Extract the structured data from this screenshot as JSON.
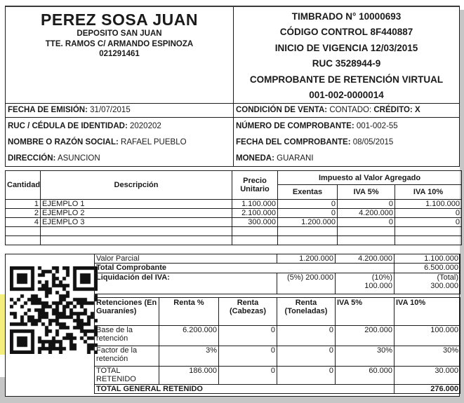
{
  "issuer": {
    "name": "PEREZ SOSA JUAN",
    "line2": "DEPOSITO SAN JUAN",
    "line3": "TTE. RAMOS C/ ARMANDO ESPINOZA",
    "line4": "021291461"
  },
  "stamp": {
    "timbrado": "TIMBRADO N° 10000693",
    "codigo_control": "CÓDIGO CONTROL 8F440887",
    "vigencia": "INICIO DE VIGENCIA 12/03/2015",
    "ruc": "RUC 3528944-9",
    "tipo_documento": "COMPROBANTE DE RETENCIÓN VIRTUAL",
    "numero_documento": "001-002-0000014"
  },
  "info": {
    "fecha_emision_label": "FECHA DE EMISIÓN:",
    "fecha_emision": "31/07/2015",
    "condicion_label": "CONDICIÓN DE VENTA:",
    "condicion_value": "CONTADO:",
    "credito": "CRÉDITO: X",
    "ruc_label": "RUC / CÉDULA DE IDENTIDAD:",
    "ruc": "2020202",
    "nombre_label": "NOMBRE O RAZÓN SOCIAL:",
    "nombre": "RAFAEL PUEBLO",
    "direccion_label": "DIRECCIÓN:",
    "direccion": "ASUNCION",
    "numero_label": "NÚMERO DE COMPROBANTE:",
    "numero": "001-002-55",
    "fecha_comprobante_label": "FECHA DEL COMPROBANTE:",
    "fecha_comprobante": "08/05/2015",
    "moneda_label": "MONEDA:",
    "moneda": "GUARANI"
  },
  "items_table": {
    "headers": {
      "cantidad": "Cantidad",
      "descripcion": "Descripción",
      "precio": "Precio Unitario",
      "iva_group": "Impuesto al Valor Agregado",
      "exentas": "Exentas",
      "iva5": "IVA 5%",
      "iva10": "IVA 10%"
    },
    "rows": [
      {
        "cantidad": "1",
        "descripcion": "EJEMPLO 1",
        "precio": "1.100.000",
        "exentas": "0",
        "iva5": "0",
        "iva10": "1.100.000"
      },
      {
        "cantidad": "2",
        "descripcion": "EJEMPLO 2",
        "precio": "2.100.000",
        "exentas": "0",
        "iva5": "4.200.000",
        "iva10": "0"
      },
      {
        "cantidad": "4",
        "descripcion": "EJEMPLO 3",
        "precio": "300.000",
        "exentas": "1.200.000",
        "iva5": "0",
        "iva10": "0"
      },
      {
        "cantidad": "",
        "descripcion": "",
        "precio": "",
        "exentas": "",
        "iva5": "",
        "iva10": ""
      },
      {
        "cantidad": "",
        "descripcion": "",
        "precio": "",
        "exentas": "",
        "iva5": "",
        "iva10": ""
      }
    ]
  },
  "totals": {
    "valor_parcial_label": "Valor Parcial",
    "valor_parcial_values": [
      "1.200.000",
      "4.200.000",
      "1.100.000"
    ],
    "total_comprobante_label": "Total Comprobante",
    "total_comprobante": "6.500.000",
    "liquidacion_label": "Liquidación del IVA:",
    "liq_5": "(5%) 200.000",
    "liq_10_l1": "(10%)",
    "liq_10_l2": "100.000",
    "liq_total_l1": "(Total)",
    "liq_total_l2": "300.000"
  },
  "retenciones": {
    "headers": [
      "Retenciones (En Guaraníes)",
      "Renta %",
      "Renta (Cabezas)",
      "Renta (Toneladas)",
      "IVA 5%",
      "IVA 10%"
    ],
    "rows": [
      {
        "label": "Base de la retención",
        "values": [
          "6.200.000",
          "0",
          "0",
          "200.000",
          "100.000"
        ]
      },
      {
        "label": "Factor de la retención",
        "values": [
          "3%",
          "0",
          "0",
          "30%",
          "30%"
        ]
      },
      {
        "label": "TOTAL RETENIDO",
        "values": [
          "186.000",
          "0",
          "0",
          "60.000",
          "30.000"
        ]
      }
    ],
    "total_general_label": "TOTAL GENERAL RETENIDO",
    "total_general": "276.000"
  },
  "decorations": {
    "qr_code": "qr-code",
    "highlight_color": "#f4ee7c",
    "shadow_color": "#c6c6c6"
  }
}
